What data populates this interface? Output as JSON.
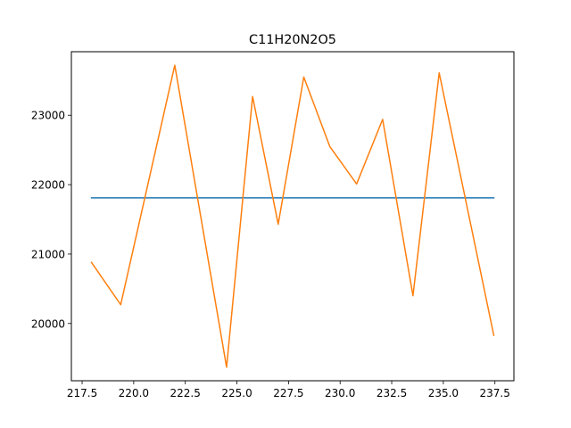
{
  "chart_data": {
    "type": "line",
    "title": "C11H20N2O5",
    "xlabel": "",
    "ylabel": "",
    "xlim": [
      216.98,
      238.42
    ],
    "ylim": [
      19175,
      23915
    ],
    "grid": false,
    "x_ticks": [
      217.5,
      220.0,
      222.5,
      225.0,
      227.5,
      230.0,
      232.5,
      235.0,
      237.5
    ],
    "x_tick_labels": [
      "217.5",
      "220.0",
      "222.5",
      "225.0",
      "227.5",
      "230.0",
      "232.5",
      "235.0",
      "237.5"
    ],
    "y_ticks": [
      20000,
      21000,
      22000,
      23000
    ],
    "y_tick_labels": [
      "20000",
      "21000",
      "22000",
      "23000"
    ],
    "series": [
      {
        "color": "#1f77b4",
        "x": [
          217.955,
          237.445
        ],
        "y": [
          21810,
          21810
        ]
      },
      {
        "color": "#ff7f0e",
        "x": [
          217.955,
          219.37,
          221.99,
          224.5,
          225.76,
          227.0,
          228.24,
          229.5,
          230.8,
          232.06,
          233.53,
          234.8,
          237.445
        ],
        "y": [
          20880,
          20270,
          23720,
          19370,
          23270,
          21430,
          23550,
          22550,
          22010,
          22940,
          20400,
          23610,
          19830
        ]
      }
    ]
  }
}
